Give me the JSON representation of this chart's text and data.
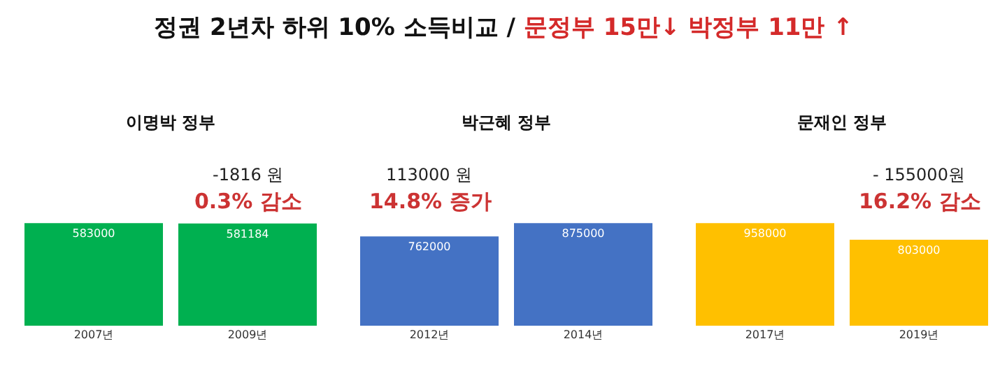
{
  "chart_data": [
    {
      "type": "other",
      "title": "정권 2년차 하위 10% 소득비교  /",
      "subtitle": "문정부 15만↓     박정부 11만 ↑"
    },
    {
      "type": "bar",
      "title": "이명박 정부",
      "categories": [
        "2007년",
        "2009년"
      ],
      "values": [
        583000,
        581184
      ],
      "data_labels": true,
      "color": "#00b050",
      "annotations": [
        "-1816 원",
        "0.3% 감소"
      ]
    },
    {
      "type": "bar",
      "title": "박근혜 정부",
      "categories": [
        "2012년",
        "2014년"
      ],
      "values": [
        762000,
        875000
      ],
      "data_labels": true,
      "color": "#4472c4",
      "annotations": [
        "113000 원",
        "14.8% 증가"
      ]
    },
    {
      "type": "bar",
      "title": "문재인 정부",
      "categories": [
        "2017년",
        "2019년"
      ],
      "values": [
        958000,
        803000
      ],
      "data_labels": true,
      "color": "#ffc000",
      "annotations": [
        "- 155000원",
        "16.2% 감소"
      ]
    }
  ]
}
